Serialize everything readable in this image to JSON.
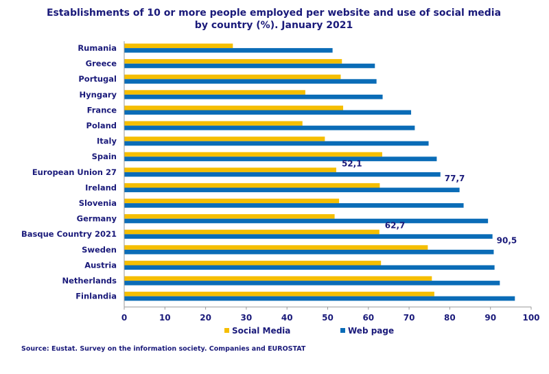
{
  "colors": {
    "social": "#F5BE00",
    "web": "#0A6CB7",
    "text": "#1a1a7a",
    "axis": "#999999"
  },
  "source": "Source: Eustat. Survey on the information society. Companies and EUROSTAT",
  "chart_data": {
    "type": "bar",
    "orientation": "horizontal",
    "title": "Establishments of 10 or more people employed per website and use of social media",
    "subtitle": "by country (%). January 2021",
    "categories": [
      "Rumania",
      "Greece",
      "Portugal",
      "Hyngary",
      "France",
      "Poland",
      "Italy",
      "Spain",
      "European Union 27",
      "Ireland",
      "Slovenia",
      "Germany",
      "Basque Country 2021",
      "Sweden",
      "Austria",
      "Netherlands",
      "Finlandia"
    ],
    "series": [
      {
        "name": "Social Media",
        "values": [
          26.7,
          53.5,
          53.2,
          44.5,
          53.8,
          43.8,
          49.3,
          63.4,
          52.1,
          62.8,
          52.8,
          51.7,
          62.7,
          74.6,
          63.1,
          75.6,
          76.2
        ]
      },
      {
        "name": "Web page",
        "values": [
          51.2,
          61.6,
          62.0,
          63.5,
          70.5,
          71.4,
          74.8,
          76.8,
          77.7,
          82.4,
          83.4,
          89.4,
          90.5,
          90.8,
          91.0,
          92.3,
          96.0
        ]
      }
    ],
    "data_labels": [
      {
        "category": "European Union 27",
        "series": "Social Media",
        "text": "52,1"
      },
      {
        "category": "European Union 27",
        "series": "Web page",
        "text": "77,7"
      },
      {
        "category": "Basque Country 2021",
        "series": "Social Media",
        "text": "62,7"
      },
      {
        "category": "Basque Country 2021",
        "series": "Web page",
        "text": "90,5"
      }
    ],
    "xlim": [
      0,
      100
    ],
    "xticks": [
      0,
      10,
      20,
      30,
      40,
      50,
      60,
      70,
      80,
      90,
      100
    ],
    "grid": false,
    "legend_position": "bottom"
  }
}
